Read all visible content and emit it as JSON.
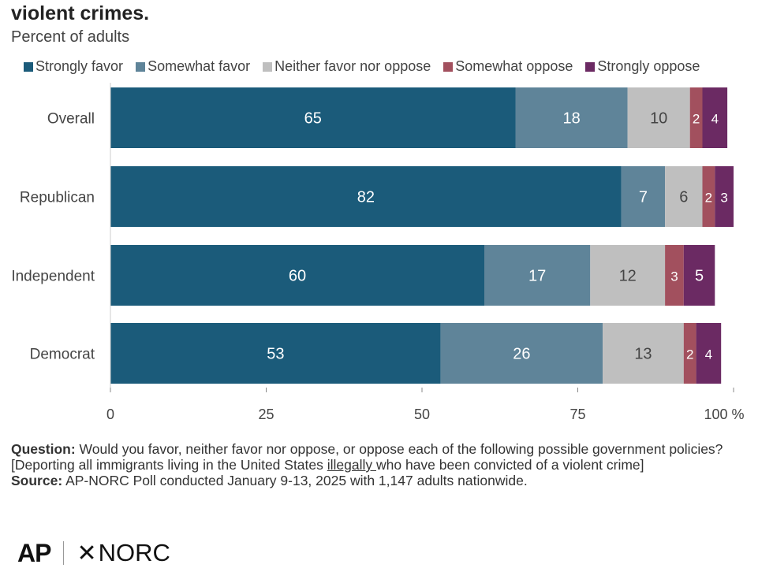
{
  "header": {
    "title": "violent crimes.",
    "subtitle": "Percent of adults"
  },
  "colors": {
    "strongly_favor": "#1b5b7a",
    "somewhat_favor": "#5f8499",
    "neither": "#bfbfbf",
    "somewhat_oppose": "#a2505e",
    "strongly_oppose": "#6b2a63"
  },
  "chart_data": {
    "type": "bar",
    "orientation": "horizontal",
    "stacked": true,
    "categories": [
      "Overall",
      "Republican",
      "Independent",
      "Democrat"
    ],
    "series": [
      {
        "name": "Strongly favor",
        "color": "#1b5b7a",
        "values": [
          65,
          82,
          60,
          53
        ]
      },
      {
        "name": "Somewhat favor",
        "color": "#5f8499",
        "values": [
          18,
          7,
          17,
          26
        ]
      },
      {
        "name": "Neither favor nor oppose",
        "color": "#bfbfbf",
        "values": [
          10,
          6,
          12,
          13
        ]
      },
      {
        "name": "Somewhat oppose",
        "color": "#a2505e",
        "values": [
          2,
          2,
          3,
          2
        ]
      },
      {
        "name": "Strongly oppose",
        "color": "#6b2a63",
        "values": [
          4,
          3,
          5,
          4
        ]
      }
    ],
    "xticks": [
      "0",
      "25",
      "50",
      "75",
      "100 %"
    ],
    "xlim": [
      0,
      100
    ],
    "legend_position": "top",
    "grid": false
  },
  "notes": {
    "question_label": "Question:",
    "question_text_before": "Would you favor, neither favor nor oppose, or oppose each of the following possible government policies? [Deporting all immigrants living in the United States ",
    "question_underlined": "illegally ",
    "question_text_after": "who have been convicted of a violent crime]",
    "source_label": "Source:",
    "source_text": "AP-NORC Poll conducted January 9-13, 2025 with 1,147 adults nationwide."
  },
  "logos": {
    "ap": "AP",
    "norc": "NORC",
    "norc_mark": "✕"
  }
}
